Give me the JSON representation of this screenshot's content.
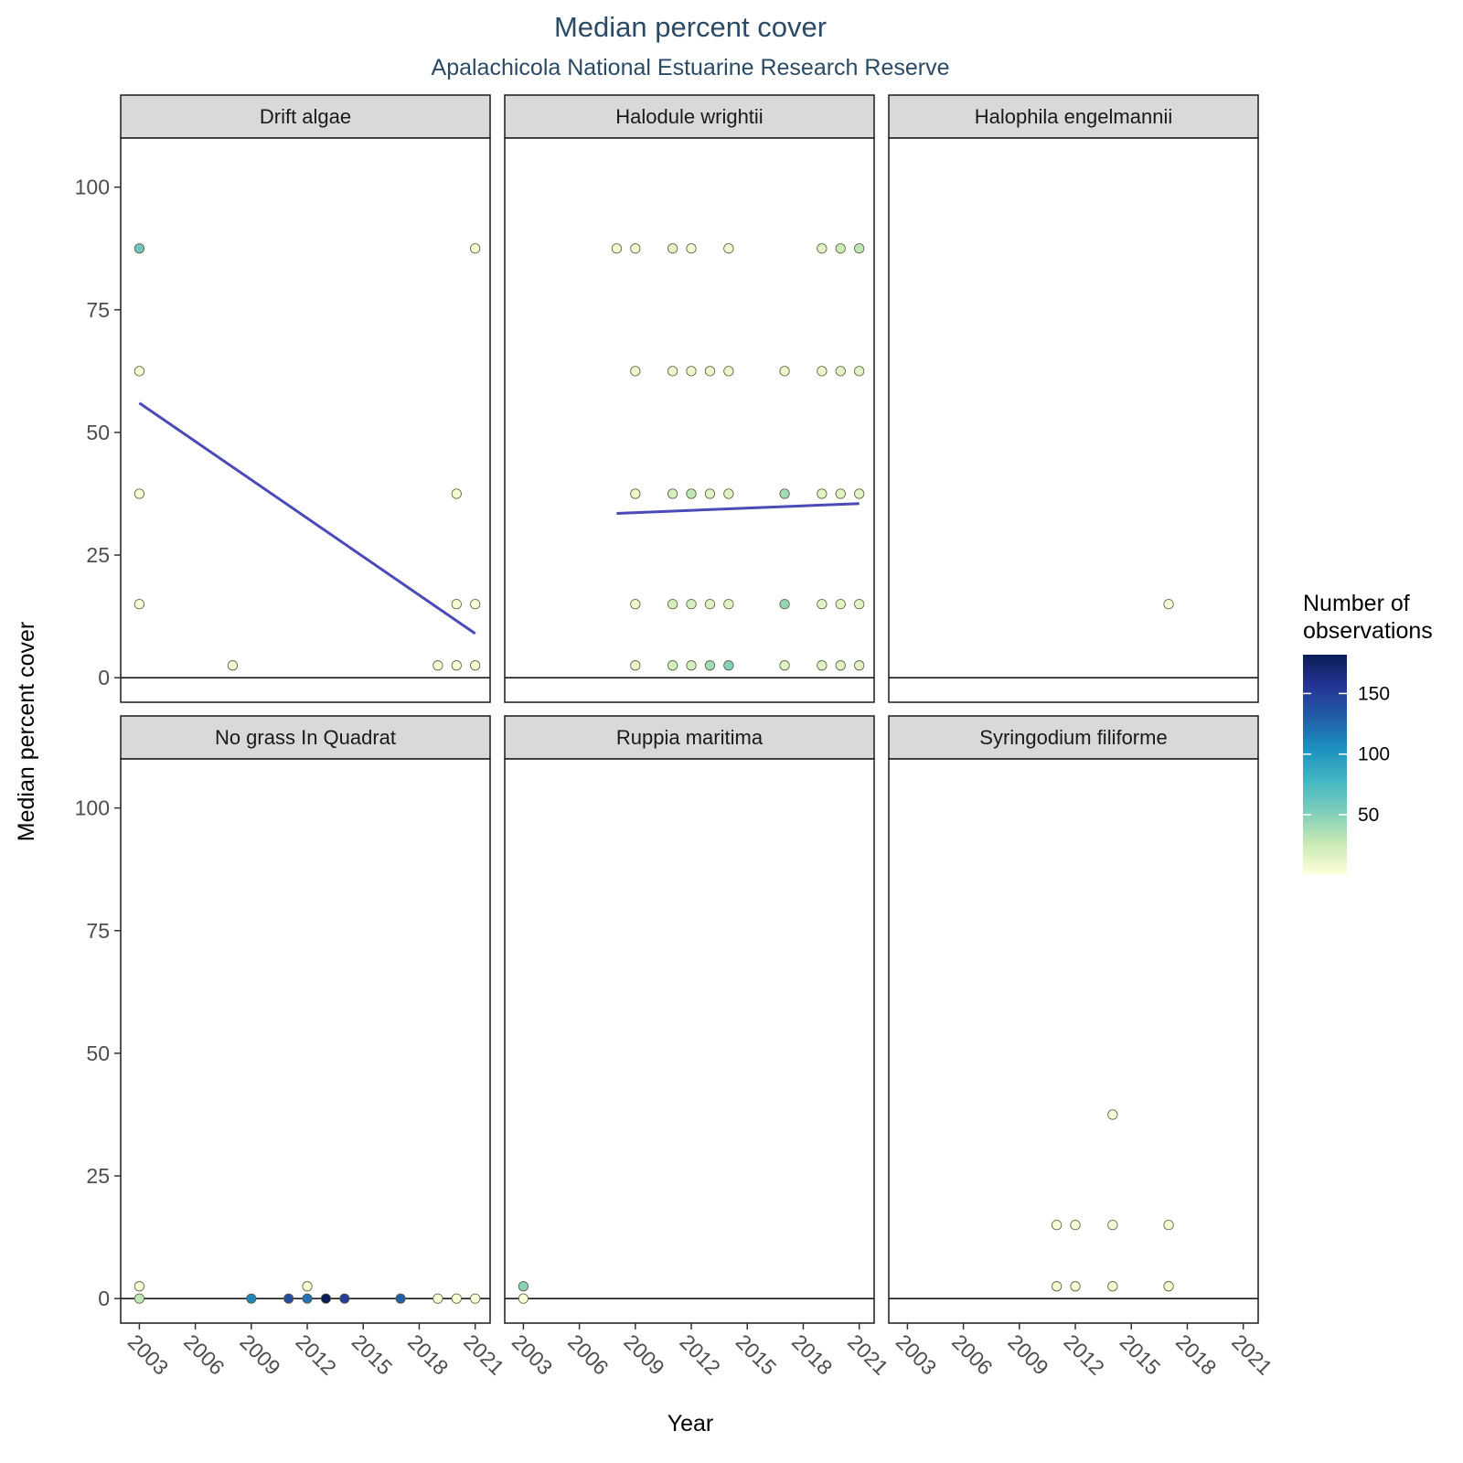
{
  "title": "Median percent cover",
  "subtitle": "Apalachicola National Estuarine Research Reserve",
  "chart_data": {
    "type": "scatter",
    "title": "Median percent cover",
    "subtitle": "Apalachicola National Estuarine Research Reserve",
    "xlabel": "Year",
    "ylabel": "Median percent cover",
    "x_ticks": [
      "2003",
      "2006",
      "2009",
      "2012",
      "2015",
      "2018",
      "2021"
    ],
    "y_ticks": [
      "0",
      "25",
      "50",
      "75",
      "100"
    ],
    "xlim": [
      2002,
      2021.8
    ],
    "ylim": [
      -5,
      110
    ],
    "hline_y": 0,
    "grid": false,
    "legend": {
      "title_line1": "Number of",
      "title_line2": "observations",
      "ticks": [
        "50",
        "100",
        "150"
      ],
      "range": [
        1,
        182
      ],
      "placement": "right",
      "colors": [
        "#ffffd9",
        "#c7e9b4",
        "#7fcdbb",
        "#41b6c4",
        "#1d91c0",
        "#225ea8",
        "#253494",
        "#081d58"
      ]
    },
    "trend_color": "#4a4ab8",
    "facets": [
      {
        "name": "Drift algae",
        "points": [
          {
            "x": 2003,
            "y": 87.5,
            "n": 60
          },
          {
            "x": 2003,
            "y": 62.5,
            "n": 5
          },
          {
            "x": 2003,
            "y": 37.5,
            "n": 5
          },
          {
            "x": 2003,
            "y": 15,
            "n": 5
          },
          {
            "x": 2008,
            "y": 2.5,
            "n": 5
          },
          {
            "x": 2019,
            "y": 2.5,
            "n": 5
          },
          {
            "x": 2020,
            "y": 37.5,
            "n": 5
          },
          {
            "x": 2020,
            "y": 15,
            "n": 5
          },
          {
            "x": 2020,
            "y": 2.5,
            "n": 5
          },
          {
            "x": 2021,
            "y": 87.5,
            "n": 5
          },
          {
            "x": 2021,
            "y": 15,
            "n": 5
          },
          {
            "x": 2021,
            "y": 2.5,
            "n": 5
          }
        ],
        "trend": [
          {
            "x": 2003,
            "y": 56
          },
          {
            "x": 2021,
            "y": 9
          }
        ]
      },
      {
        "name": "Halodule wrightii",
        "points": [
          {
            "x": 2008,
            "y": 87.5,
            "n": 8
          },
          {
            "x": 2009,
            "y": 87.5,
            "n": 8
          },
          {
            "x": 2011,
            "y": 87.5,
            "n": 15
          },
          {
            "x": 2012,
            "y": 87.5,
            "n": 8
          },
          {
            "x": 2014,
            "y": 87.5,
            "n": 8
          },
          {
            "x": 2019,
            "y": 87.5,
            "n": 15
          },
          {
            "x": 2020,
            "y": 87.5,
            "n": 25
          },
          {
            "x": 2021,
            "y": 87.5,
            "n": 30
          },
          {
            "x": 2009,
            "y": 62.5,
            "n": 8
          },
          {
            "x": 2011,
            "y": 62.5,
            "n": 10
          },
          {
            "x": 2012,
            "y": 62.5,
            "n": 10
          },
          {
            "x": 2013,
            "y": 62.5,
            "n": 10
          },
          {
            "x": 2014,
            "y": 62.5,
            "n": 10
          },
          {
            "x": 2017,
            "y": 62.5,
            "n": 10
          },
          {
            "x": 2019,
            "y": 62.5,
            "n": 10
          },
          {
            "x": 2020,
            "y": 62.5,
            "n": 15
          },
          {
            "x": 2021,
            "y": 62.5,
            "n": 15
          },
          {
            "x": 2009,
            "y": 37.5,
            "n": 10
          },
          {
            "x": 2011,
            "y": 37.5,
            "n": 20
          },
          {
            "x": 2012,
            "y": 37.5,
            "n": 30
          },
          {
            "x": 2013,
            "y": 37.5,
            "n": 15
          },
          {
            "x": 2014,
            "y": 37.5,
            "n": 15
          },
          {
            "x": 2017,
            "y": 37.5,
            "n": 40
          },
          {
            "x": 2019,
            "y": 37.5,
            "n": 15
          },
          {
            "x": 2020,
            "y": 37.5,
            "n": 15
          },
          {
            "x": 2021,
            "y": 37.5,
            "n": 15
          },
          {
            "x": 2009,
            "y": 15,
            "n": 10
          },
          {
            "x": 2011,
            "y": 15,
            "n": 20
          },
          {
            "x": 2012,
            "y": 15,
            "n": 20
          },
          {
            "x": 2013,
            "y": 15,
            "n": 15
          },
          {
            "x": 2014,
            "y": 15,
            "n": 15
          },
          {
            "x": 2017,
            "y": 15,
            "n": 45
          },
          {
            "x": 2019,
            "y": 15,
            "n": 15
          },
          {
            "x": 2020,
            "y": 15,
            "n": 15
          },
          {
            "x": 2021,
            "y": 15,
            "n": 15
          },
          {
            "x": 2009,
            "y": 2.5,
            "n": 10
          },
          {
            "x": 2011,
            "y": 2.5,
            "n": 20
          },
          {
            "x": 2012,
            "y": 2.5,
            "n": 20
          },
          {
            "x": 2013,
            "y": 2.5,
            "n": 40
          },
          {
            "x": 2014,
            "y": 2.5,
            "n": 50
          },
          {
            "x": 2017,
            "y": 2.5,
            "n": 15
          },
          {
            "x": 2019,
            "y": 2.5,
            "n": 15
          },
          {
            "x": 2020,
            "y": 2.5,
            "n": 15
          },
          {
            "x": 2021,
            "y": 2.5,
            "n": 15
          }
        ],
        "trend": [
          {
            "x": 2008,
            "y": 33.5
          },
          {
            "x": 2021,
            "y": 35.5
          }
        ]
      },
      {
        "name": "Halophila engelmannii",
        "points": [
          {
            "x": 2017,
            "y": 15,
            "n": 5
          }
        ]
      },
      {
        "name": "No grass In Quadrat",
        "points": [
          {
            "x": 2003,
            "y": 2.5,
            "n": 5
          },
          {
            "x": 2003,
            "y": 0,
            "n": 30
          },
          {
            "x": 2009,
            "y": 0,
            "n": 110
          },
          {
            "x": 2011,
            "y": 0,
            "n": 140
          },
          {
            "x": 2012,
            "y": 2.5,
            "n": 5
          },
          {
            "x": 2012,
            "y": 0,
            "n": 120
          },
          {
            "x": 2013,
            "y": 0,
            "n": 182
          },
          {
            "x": 2014,
            "y": 0,
            "n": 150
          },
          {
            "x": 2017,
            "y": 0,
            "n": 130
          },
          {
            "x": 2019,
            "y": 0,
            "n": 5
          },
          {
            "x": 2020,
            "y": 0,
            "n": 5
          },
          {
            "x": 2021,
            "y": 0,
            "n": 5
          }
        ]
      },
      {
        "name": "Ruppia maritima",
        "points": [
          {
            "x": 2003,
            "y": 2.5,
            "n": 50
          },
          {
            "x": 2003,
            "y": 0,
            "n": 5
          }
        ]
      },
      {
        "name": "Syringodium filiforme",
        "points": [
          {
            "x": 2011,
            "y": 15,
            "n": 5
          },
          {
            "x": 2012,
            "y": 15,
            "n": 5
          },
          {
            "x": 2014,
            "y": 37.5,
            "n": 5
          },
          {
            "x": 2014,
            "y": 15,
            "n": 5
          },
          {
            "x": 2017,
            "y": 15,
            "n": 5
          },
          {
            "x": 2011,
            "y": 2.5,
            "n": 5
          },
          {
            "x": 2012,
            "y": 2.5,
            "n": 5
          },
          {
            "x": 2014,
            "y": 2.5,
            "n": 5
          },
          {
            "x": 2017,
            "y": 2.5,
            "n": 5
          }
        ]
      }
    ]
  }
}
